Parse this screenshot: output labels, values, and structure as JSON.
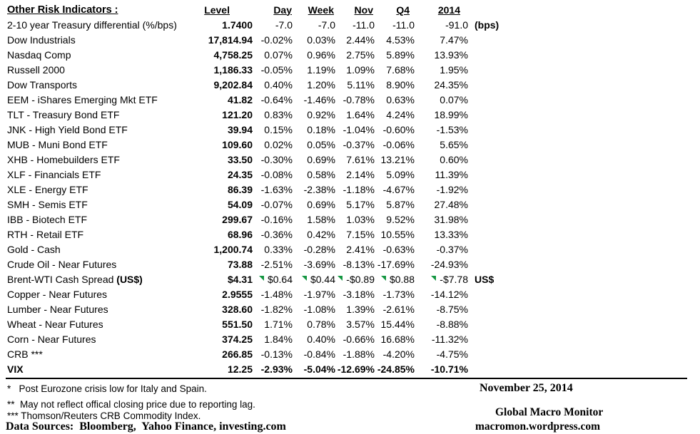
{
  "table": {
    "title": "Other Risk Indicators :",
    "columns": [
      "Level",
      "Day",
      "Week",
      "Nov",
      "Q4",
      "2014"
    ],
    "rows": [
      {
        "label": "2-10 year Treasury differential (%/bps)",
        "level": "1.7400",
        "pcts": [
          "-7.0",
          "-7.0",
          "-11.0",
          "-11.0",
          "-91.0"
        ],
        "unit": "(bps)"
      },
      {
        "label": "Dow Industrials",
        "level": "17,814.94",
        "pcts": [
          "-0.02%",
          "0.03%",
          "2.44%",
          "4.53%",
          "7.47%"
        ]
      },
      {
        "label": "Nasdaq Comp",
        "level": "4,758.25",
        "pcts": [
          "0.07%",
          "0.96%",
          "2.75%",
          "5.89%",
          "13.93%"
        ]
      },
      {
        "label": "Russell 2000",
        "level": "1,186.33",
        "pcts": [
          "-0.05%",
          "1.19%",
          "1.09%",
          "7.68%",
          "1.95%"
        ]
      },
      {
        "label": "Dow Transports",
        "level": "9,202.84",
        "pcts": [
          "0.40%",
          "1.20%",
          "5.11%",
          "8.90%",
          "24.35%"
        ]
      },
      {
        "label": "EEM - iShares Emerging Mkt ETF",
        "level": "41.82",
        "pcts": [
          "-0.64%",
          "-1.46%",
          "-0.78%",
          "0.63%",
          "0.07%"
        ]
      },
      {
        "label": "TLT - Treasury Bond ETF",
        "level": "121.20",
        "pcts": [
          "0.83%",
          "0.92%",
          "1.64%",
          "4.24%",
          "18.99%"
        ]
      },
      {
        "label": "JNK - High Yield Bond ETF",
        "level": "39.94",
        "pcts": [
          "0.15%",
          "0.18%",
          "-1.04%",
          "-0.60%",
          "-1.53%"
        ]
      },
      {
        "label": "MUB - Muni Bond ETF",
        "level": "109.60",
        "pcts": [
          "0.02%",
          "0.05%",
          "-0.37%",
          "-0.06%",
          "5.65%"
        ]
      },
      {
        "label": "XHB - Homebuilders ETF",
        "level": "33.50",
        "pcts": [
          "-0.30%",
          "0.69%",
          "7.61%",
          "13.21%",
          "0.60%"
        ]
      },
      {
        "label": "XLF - Financials ETF",
        "level": "24.35",
        "pcts": [
          "-0.08%",
          "0.58%",
          "2.14%",
          "5.09%",
          "11.39%"
        ]
      },
      {
        "label": "XLE - Energy ETF",
        "level": "86.39",
        "pcts": [
          "-1.63%",
          "-2.38%",
          "-1.18%",
          "-4.67%",
          "-1.92%"
        ]
      },
      {
        "label": "SMH - Semis ETF",
        "level": "54.09",
        "pcts": [
          "-0.07%",
          "0.69%",
          "5.17%",
          "5.87%",
          "27.48%"
        ]
      },
      {
        "label": "IBB - Biotech ETF",
        "level": "299.67",
        "pcts": [
          "-0.16%",
          "1.58%",
          "1.03%",
          "9.52%",
          "31.98%"
        ]
      },
      {
        "label": "RTH - Retail ETF",
        "level": "68.96",
        "pcts": [
          "-0.36%",
          "0.42%",
          "7.15%",
          "10.55%",
          "13.33%"
        ]
      },
      {
        "label": "Gold - Cash",
        "level": "1,200.74",
        "pcts": [
          "0.33%",
          "-0.28%",
          "2.41%",
          "-0.63%",
          "-0.37%"
        ]
      },
      {
        "label": "Crude Oil - Near Futures",
        "level": "73.88",
        "pcts": [
          "-2.51%",
          "-3.69%",
          "-8.13%",
          "-17.69%",
          "-24.93%"
        ]
      },
      {
        "label": "Brent-WTI Cash Spread ",
        "label_bold": "(US$)",
        "level": "$4.31",
        "pcts": [
          "$0.64",
          "$0.44",
          "-$0.89",
          "$0.88",
          "-$7.78"
        ],
        "unit": "US$",
        "flags": true
      },
      {
        "label": "Copper - Near Futures",
        "level": "2.9555",
        "pcts": [
          "-1.48%",
          "-1.97%",
          "-3.18%",
          "-1.73%",
          "-14.12%"
        ]
      },
      {
        "label": "Lumber - Near Futures",
        "level": "328.60",
        "pcts": [
          "-1.82%",
          "-1.08%",
          "1.39%",
          "-2.61%",
          "-8.75%"
        ]
      },
      {
        "label": "Wheat - Near Futures",
        "level": "551.50",
        "pcts": [
          "1.71%",
          "0.78%",
          "3.57%",
          "15.44%",
          "-8.88%"
        ]
      },
      {
        "label": "Corn - Near Futures",
        "level": "374.25",
        "pcts": [
          "1.84%",
          "0.40%",
          "-0.66%",
          "16.68%",
          "-11.32%"
        ]
      },
      {
        "label": "CRB ***",
        "level": "266.85",
        "pcts": [
          "-0.13%",
          "-0.84%",
          "-1.88%",
          "-4.20%",
          "-4.75%"
        ]
      },
      {
        "label": "VIX",
        "level": "12.25",
        "pcts": [
          "-2.93%",
          "-5.04%",
          "-12.69%",
          "-24.85%",
          "-10.71%"
        ],
        "bold": true
      }
    ]
  },
  "footnotes": [
    "*   Post Eurozone crisis low for Italy and Spain.",
    "**  May not reflect offical closing price due to reporting lag.",
    "*** Thomson/Reuters CRB Commodity Index."
  ],
  "source_line": "Data Sources:  Bloomberg,  Yahoo Finance, investing.com",
  "footer_right": {
    "date": "November 25, 2014",
    "brand": "Global Macro Monitor",
    "url": "macromon.wordpress.com"
  },
  "icons": {
    "comment_flag": "excel-green-corner-triangle-icon"
  },
  "colors": {
    "background": "#ffffff",
    "text": "#000000",
    "flag_green": "#149641"
  }
}
